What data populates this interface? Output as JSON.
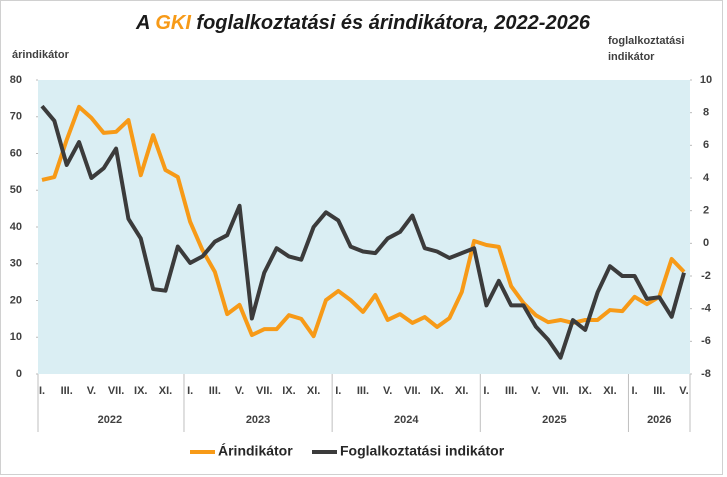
{
  "chart_data": {
    "type": "line",
    "title": {
      "prefix": "A ",
      "highlight": "GKI",
      "suffix": " foglalkoztatási és árindikátora, 2022-2026"
    },
    "ylabel": "árindikátor",
    "y2label": [
      "foglalkoztatási",
      "indikátor"
    ],
    "categories": [
      "I.",
      null,
      "III.",
      null,
      "V.",
      null,
      "VII.",
      null,
      "IX.",
      null,
      "XI.",
      null,
      "I.",
      null,
      "III.",
      null,
      "V.",
      null,
      "VII.",
      null,
      "IX.",
      null,
      "XI.",
      null,
      "I.",
      null,
      "III.",
      null,
      "V.",
      null,
      "VII.",
      null,
      "IX.",
      null,
      "XI.",
      null,
      "I.",
      null,
      "III.",
      null,
      "V.",
      null,
      "VII.",
      null,
      "IX.",
      null,
      "XI.",
      null,
      "I.",
      null,
      "III.",
      null,
      "V."
    ],
    "years": [
      "2022",
      "2023",
      "2024",
      "2025",
      "2026"
    ],
    "series": [
      {
        "name": "Árindikátor",
        "color": "#f79a17",
        "axis": "y",
        "values": [
          52.8,
          53.6,
          63.7,
          72.7,
          69.7,
          65.6,
          65.9,
          69.1,
          54.1,
          65,
          55.5,
          53.6,
          41.4,
          33.7,
          27.8,
          16.3,
          18.8,
          10.6,
          12.2,
          12.2,
          16,
          15,
          10.3,
          20.1,
          22.6,
          20.1,
          16.9,
          21.5,
          14.7,
          16.3,
          13.9,
          15.5,
          12.8,
          15.2,
          22.3,
          36.2,
          35.1,
          34.6,
          23.9,
          19.3,
          16,
          14.1,
          14.7,
          13.9,
          14.7,
          14.7,
          17.4,
          17.1,
          21,
          19,
          21,
          31.3,
          27.8
        ]
      },
      {
        "name": "Foglalkoztatási indikátor",
        "color": "#3b3b3b",
        "axis": "y2",
        "values": [
          8.4,
          7.5,
          4.8,
          6.2,
          4.0,
          4.6,
          5.8,
          1.5,
          0.3,
          -2.8,
          -2.9,
          -0.2,
          -1.2,
          -0.8,
          0.1,
          0.5,
          2.3,
          -4.6,
          -1.8,
          -0.3,
          -0.8,
          -1.0,
          1.0,
          1.9,
          1.4,
          -0.2,
          -0.5,
          -0.6,
          0.3,
          0.7,
          1.7,
          -0.3,
          -0.5,
          -0.9,
          -0.6,
          -0.3,
          -3.8,
          -2.3,
          -3.8,
          -3.8,
          -5.1,
          -5.9,
          -7.0,
          -4.7,
          -5.3,
          -3.0,
          -1.4,
          -2.0,
          -2.0,
          -3.4,
          -3.3,
          -4.5,
          -1.8
        ]
      }
    ],
    "ylim": [
      0,
      80
    ],
    "yticks": [
      0,
      10,
      20,
      30,
      40,
      50,
      60,
      70,
      80
    ],
    "y2lim": [
      -8,
      10
    ],
    "y2ticks": [
      -8,
      -6,
      -4,
      -2,
      0,
      2,
      4,
      6,
      8,
      10
    ],
    "grid": false,
    "legend": "bottom",
    "plot_background": "#daeef3"
  }
}
